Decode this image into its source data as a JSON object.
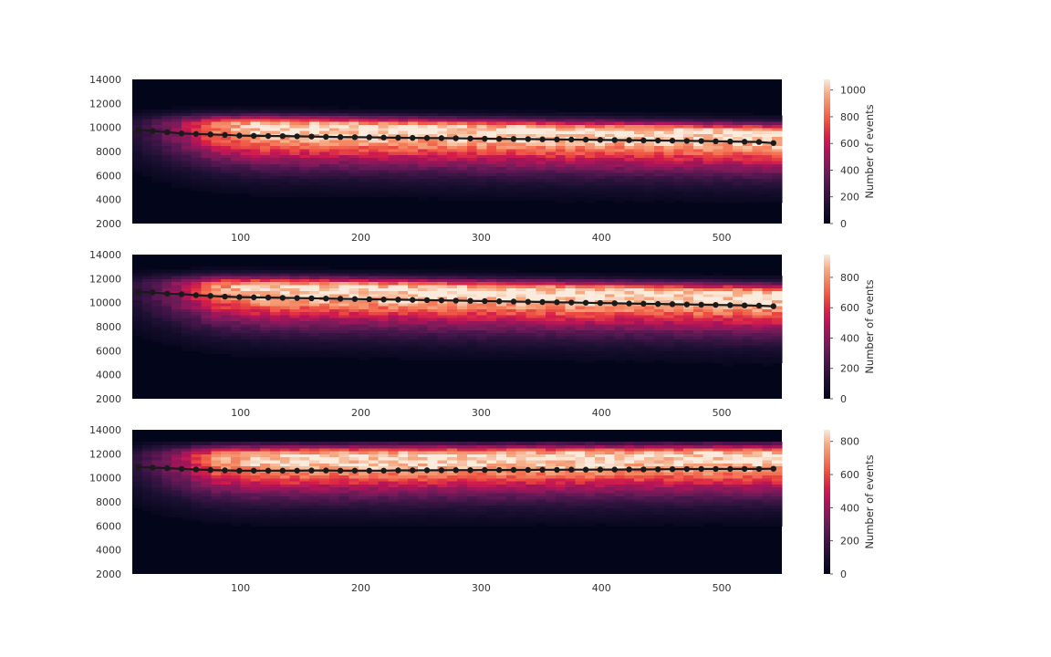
{
  "chart_data": [
    {
      "type": "heatmap",
      "panel": 1,
      "xlim": [
        10,
        550
      ],
      "ylim": [
        2000,
        14000
      ],
      "xticks": [
        "100",
        "200",
        "300",
        "400",
        "500"
      ],
      "yticks": [
        "2000",
        "4000",
        "6000",
        "8000",
        "10000",
        "12000",
        "14000"
      ],
      "grid": false,
      "colorbar": {
        "label": "Number of events",
        "range": [
          0,
          1080
        ],
        "ticks": [
          "0",
          "200",
          "400",
          "600",
          "800",
          "1000"
        ]
      },
      "band": {
        "center_start": 10300,
        "center_end": 9500,
        "peak_start": 530,
        "peak_end": 1080
      },
      "trend": {
        "x": [
          15,
          27,
          39,
          51,
          63,
          75,
          87,
          99,
          111,
          123,
          135,
          147,
          159,
          171,
          183,
          195,
          207,
          219,
          231,
          243,
          255,
          267,
          279,
          291,
          303,
          315,
          327,
          339,
          351,
          363,
          375,
          387,
          399,
          411,
          423,
          435,
          447,
          459,
          471,
          483,
          495,
          507,
          519,
          531,
          543
        ],
        "y": [
          9800,
          9700,
          9600,
          9500,
          9460,
          9420,
          9380,
          9320,
          9300,
          9290,
          9280,
          9260,
          9240,
          9220,
          9200,
          9190,
          9180,
          9160,
          9140,
          9130,
          9120,
          9110,
          9100,
          9080,
          9060,
          9050,
          9040,
          9030,
          9010,
          9000,
          8990,
          8980,
          8960,
          8950,
          8940,
          8920,
          8910,
          8900,
          8880,
          8870,
          8850,
          8830,
          8810,
          8790,
          8700
        ]
      }
    },
    {
      "type": "heatmap",
      "panel": 2,
      "xlim": [
        10,
        550
      ],
      "ylim": [
        2000,
        14000
      ],
      "xticks": [
        "100",
        "200",
        "300",
        "400",
        "500"
      ],
      "yticks": [
        "2000",
        "4000",
        "6000",
        "8000",
        "10000",
        "12000",
        "14000"
      ],
      "grid": false,
      "colorbar": {
        "label": "Number of events",
        "range": [
          0,
          950
        ],
        "ticks": [
          "0",
          "200",
          "400",
          "600",
          "800"
        ]
      },
      "band": {
        "center_start": 11500,
        "center_end": 10700,
        "peak_start": 500,
        "peak_end": 950
      },
      "trend": {
        "x": [
          15,
          27,
          39,
          51,
          63,
          75,
          87,
          99,
          111,
          123,
          135,
          147,
          159,
          171,
          183,
          195,
          207,
          219,
          231,
          243,
          255,
          267,
          279,
          291,
          303,
          315,
          327,
          339,
          351,
          363,
          375,
          387,
          399,
          411,
          423,
          435,
          447,
          459,
          471,
          483,
          495,
          507,
          519,
          531,
          543
        ],
        "y": [
          10900,
          10850,
          10750,
          10700,
          10620,
          10560,
          10500,
          10460,
          10440,
          10420,
          10400,
          10380,
          10360,
          10340,
          10320,
          10300,
          10280,
          10260,
          10250,
          10230,
          10210,
          10190,
          10170,
          10150,
          10130,
          10110,
          10090,
          10070,
          10050,
          10030,
          10010,
          9990,
          9970,
          9950,
          9930,
          9910,
          9890,
          9870,
          9850,
          9830,
          9810,
          9790,
          9770,
          9750,
          9700
        ]
      }
    },
    {
      "type": "heatmap",
      "panel": 3,
      "xlim": [
        10,
        550
      ],
      "ylim": [
        2000,
        14000
      ],
      "xticks": [
        "100",
        "200",
        "300",
        "400",
        "500"
      ],
      "yticks": [
        "2000",
        "4000",
        "6000",
        "8000",
        "10000",
        "12000",
        "14000"
      ],
      "grid": false,
      "colorbar": {
        "label": "Number of events",
        "range": [
          0,
          870
        ],
        "ticks": [
          "0",
          "200",
          "400",
          "600",
          "800"
        ]
      },
      "band": {
        "center_start": 11800,
        "center_end": 11900,
        "peak_start": 480,
        "peak_end": 870
      },
      "trend": {
        "x": [
          15,
          27,
          39,
          51,
          63,
          75,
          87,
          99,
          111,
          123,
          135,
          147,
          159,
          171,
          183,
          195,
          207,
          219,
          231,
          243,
          255,
          267,
          279,
          291,
          303,
          315,
          327,
          339,
          351,
          363,
          375,
          387,
          399,
          411,
          423,
          435,
          447,
          459,
          471,
          483,
          495,
          507,
          519,
          531,
          543
        ],
        "y": [
          10900,
          10850,
          10800,
          10750,
          10700,
          10650,
          10620,
          10600,
          10600,
          10600,
          10600,
          10600,
          10610,
          10610,
          10600,
          10600,
          10600,
          10600,
          10620,
          10620,
          10630,
          10630,
          10640,
          10640,
          10650,
          10650,
          10660,
          10660,
          10670,
          10670,
          10680,
          10680,
          10690,
          10690,
          10700,
          10700,
          10710,
          10720,
          10730,
          10740,
          10740,
          10740,
          10740,
          10740,
          10760
        ]
      }
    }
  ]
}
